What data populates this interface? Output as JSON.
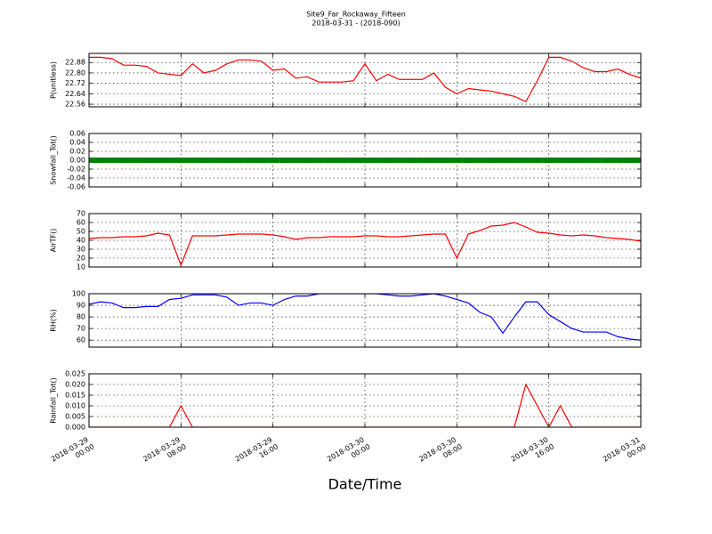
{
  "chart_data": [
    {
      "type": "line",
      "title": "Site9_Far_Rockaway_Fifteen",
      "subtitle": "2018-03-31 - (2018-090)",
      "y_label": "P(unitless)",
      "x": [
        "2018-03-29 00:00",
        "2018-03-29 01:00",
        "2018-03-29 02:00",
        "2018-03-29 03:00",
        "2018-03-29 04:00",
        "2018-03-29 05:00",
        "2018-03-29 06:00",
        "2018-03-29 07:00",
        "2018-03-29 08:00",
        "2018-03-29 09:00",
        "2018-03-29 10:00",
        "2018-03-29 11:00",
        "2018-03-29 12:00",
        "2018-03-29 13:00",
        "2018-03-29 14:00",
        "2018-03-29 15:00",
        "2018-03-29 16:00",
        "2018-03-29 17:00",
        "2018-03-29 18:00",
        "2018-03-29 19:00",
        "2018-03-29 20:00",
        "2018-03-29 21:00",
        "2018-03-29 22:00",
        "2018-03-29 23:00",
        "2018-03-30 00:00",
        "2018-03-30 01:00",
        "2018-03-30 02:00",
        "2018-03-30 03:00",
        "2018-03-30 04:00",
        "2018-03-30 05:00",
        "2018-03-30 06:00",
        "2018-03-30 07:00",
        "2018-03-30 08:00",
        "2018-03-30 09:00",
        "2018-03-30 10:00",
        "2018-03-30 11:00",
        "2018-03-30 12:00",
        "2018-03-30 13:00",
        "2018-03-30 14:00",
        "2018-03-30 15:00",
        "2018-03-30 16:00",
        "2018-03-30 17:00",
        "2018-03-30 18:00",
        "2018-03-30 19:00",
        "2018-03-30 20:00",
        "2018-03-30 21:00",
        "2018-03-30 22:00",
        "2018-03-30 23:00",
        "2018-03-31 00:00"
      ],
      "series": [
        {
          "color": "#ff0000",
          "values": [
            22.92,
            22.92,
            22.91,
            22.86,
            22.86,
            22.85,
            22.8,
            22.79,
            22.78,
            22.87,
            22.8,
            22.82,
            22.87,
            22.9,
            22.9,
            22.89,
            22.82,
            22.83,
            22.76,
            22.77,
            22.73,
            22.73,
            22.73,
            22.74,
            22.87,
            22.74,
            22.79,
            22.75,
            22.75,
            22.75,
            22.8,
            22.69,
            22.64,
            22.68,
            22.67,
            22.66,
            22.64,
            22.62,
            22.58,
            22.74,
            22.92,
            22.92,
            22.89,
            22.84,
            22.81,
            22.81,
            22.83,
            22.79,
            22.76
          ]
        }
      ],
      "xlim": [
        "2018-03-29 00:00",
        "2018-03-31 00:00"
      ],
      "xticks": [
        "2018-03-29 00:00",
        "2018-03-29 08:00",
        "2018-03-29 16:00",
        "2018-03-30 00:00",
        "2018-03-30 08:00",
        "2018-03-30 16:00",
        "2018-03-31 00:00"
      ],
      "ylim": [
        22.54,
        22.95
      ],
      "yticks": [
        22.56,
        22.64,
        22.72,
        {
          "value": 22.8,
          "label": "22.80"
        },
        22.88
      ],
      "grid": true
    },
    {
      "type": "line",
      "y_label": "Snowfall_Tot()",
      "markers": true,
      "x": [
        "2018-03-29 00:00",
        "2018-03-29 01:00",
        "2018-03-29 02:00",
        "2018-03-29 03:00",
        "2018-03-29 04:00",
        "2018-03-29 05:00",
        "2018-03-29 06:00",
        "2018-03-29 07:00",
        "2018-03-29 08:00",
        "2018-03-29 09:00",
        "2018-03-29 10:00",
        "2018-03-29 11:00",
        "2018-03-29 12:00",
        "2018-03-29 13:00",
        "2018-03-29 14:00",
        "2018-03-29 15:00",
        "2018-03-29 16:00",
        "2018-03-29 17:00",
        "2018-03-29 18:00",
        "2018-03-29 19:00",
        "2018-03-29 20:00",
        "2018-03-29 21:00",
        "2018-03-29 22:00",
        "2018-03-29 23:00",
        "2018-03-30 00:00",
        "2018-03-30 01:00",
        "2018-03-30 02:00",
        "2018-03-30 03:00",
        "2018-03-30 04:00",
        "2018-03-30 05:00",
        "2018-03-30 06:00",
        "2018-03-30 07:00",
        "2018-03-30 08:00",
        "2018-03-30 09:00",
        "2018-03-30 10:00",
        "2018-03-30 11:00",
        "2018-03-30 12:00",
        "2018-03-30 13:00",
        "2018-03-30 14:00",
        "2018-03-30 15:00",
        "2018-03-30 16:00",
        "2018-03-30 17:00",
        "2018-03-30 18:00",
        "2018-03-30 19:00",
        "2018-03-30 20:00",
        "2018-03-30 21:00",
        "2018-03-30 22:00",
        "2018-03-30 23:00",
        "2018-03-31 00:00"
      ],
      "series": [
        {
          "color": "#008000",
          "values": [
            0,
            0,
            0,
            0,
            0,
            0,
            0,
            0,
            0,
            0,
            0,
            0,
            0,
            0,
            0,
            0,
            0,
            0,
            0,
            0,
            0,
            0,
            0,
            0,
            0,
            0,
            0,
            0,
            0,
            0,
            0,
            0,
            0,
            0,
            0,
            0,
            0,
            0,
            0,
            0,
            0,
            0,
            0,
            0,
            0,
            0,
            0,
            0,
            0
          ]
        }
      ],
      "xlim": [
        "2018-03-29 00:00",
        "2018-03-31 00:00"
      ],
      "xticks": [
        "2018-03-29 00:00",
        "2018-03-29 08:00",
        "2018-03-29 16:00",
        "2018-03-30 00:00",
        "2018-03-30 08:00",
        "2018-03-30 16:00",
        "2018-03-31 00:00"
      ],
      "ylim": [
        -0.06,
        0.06
      ],
      "yticks": [
        -0.06,
        -0.04,
        -0.02,
        {
          "value": 0,
          "label": "0.00"
        },
        0.02,
        0.04,
        0.06
      ],
      "grid": true
    },
    {
      "type": "line",
      "y_label": "AirTF()",
      "x": [
        "2018-03-29 00:00",
        "2018-03-29 01:00",
        "2018-03-29 02:00",
        "2018-03-29 03:00",
        "2018-03-29 04:00",
        "2018-03-29 05:00",
        "2018-03-29 06:00",
        "2018-03-29 07:00",
        "2018-03-29 08:00",
        "2018-03-29 09:00",
        "2018-03-29 10:00",
        "2018-03-29 11:00",
        "2018-03-29 12:00",
        "2018-03-29 13:00",
        "2018-03-29 14:00",
        "2018-03-29 15:00",
        "2018-03-29 16:00",
        "2018-03-29 17:00",
        "2018-03-29 18:00",
        "2018-03-29 19:00",
        "2018-03-29 20:00",
        "2018-03-29 21:00",
        "2018-03-29 22:00",
        "2018-03-29 23:00",
        "2018-03-30 00:00",
        "2018-03-30 01:00",
        "2018-03-30 02:00",
        "2018-03-30 03:00",
        "2018-03-30 04:00",
        "2018-03-30 05:00",
        "2018-03-30 06:00",
        "2018-03-30 07:00",
        "2018-03-30 08:00",
        "2018-03-30 09:00",
        "2018-03-30 10:00",
        "2018-03-30 11:00",
        "2018-03-30 12:00",
        "2018-03-30 13:00",
        "2018-03-30 14:00",
        "2018-03-30 15:00",
        "2018-03-30 16:00",
        "2018-03-30 17:00",
        "2018-03-30 18:00",
        "2018-03-30 19:00",
        "2018-03-30 20:00",
        "2018-03-30 21:00",
        "2018-03-30 22:00",
        "2018-03-30 23:00",
        "2018-03-31 00:00"
      ],
      "series": [
        {
          "color": "#ff0000",
          "values": [
            42,
            43,
            43,
            44,
            44,
            45,
            48,
            46,
            12,
            45,
            45,
            45,
            46,
            47,
            47,
            47,
            46,
            44,
            41,
            43,
            43,
            44,
            44,
            44,
            45,
            45,
            44,
            44,
            45,
            46,
            47,
            47,
            20,
            47,
            51,
            56,
            57,
            60,
            55,
            49,
            48,
            46,
            45,
            46,
            45,
            43,
            42,
            41,
            39
          ]
        }
      ],
      "xlim": [
        "2018-03-29 00:00",
        "2018-03-31 00:00"
      ],
      "xticks": [
        "2018-03-29 00:00",
        "2018-03-29 08:00",
        "2018-03-29 16:00",
        "2018-03-30 00:00",
        "2018-03-30 08:00",
        "2018-03-30 16:00",
        "2018-03-31 00:00"
      ],
      "ylim": [
        10,
        70
      ],
      "yticks": [
        10,
        20,
        30,
        40,
        50,
        60,
        70
      ],
      "grid": true
    },
    {
      "type": "line",
      "y_label": "RH(%)",
      "x": [
        "2018-03-29 00:00",
        "2018-03-29 01:00",
        "2018-03-29 02:00",
        "2018-03-29 03:00",
        "2018-03-29 04:00",
        "2018-03-29 05:00",
        "2018-03-29 06:00",
        "2018-03-29 07:00",
        "2018-03-29 08:00",
        "2018-03-29 09:00",
        "2018-03-29 10:00",
        "2018-03-29 11:00",
        "2018-03-29 12:00",
        "2018-03-29 13:00",
        "2018-03-29 14:00",
        "2018-03-29 15:00",
        "2018-03-29 16:00",
        "2018-03-29 17:00",
        "2018-03-29 18:00",
        "2018-03-29 19:00",
        "2018-03-29 20:00",
        "2018-03-29 21:00",
        "2018-03-29 22:00",
        "2018-03-29 23:00",
        "2018-03-30 00:00",
        "2018-03-30 01:00",
        "2018-03-30 02:00",
        "2018-03-30 03:00",
        "2018-03-30 04:00",
        "2018-03-30 05:00",
        "2018-03-30 06:00",
        "2018-03-30 07:00",
        "2018-03-30 08:00",
        "2018-03-30 09:00",
        "2018-03-30 10:00",
        "2018-03-30 11:00",
        "2018-03-30 12:00",
        "2018-03-30 13:00",
        "2018-03-30 14:00",
        "2018-03-30 15:00",
        "2018-03-30 16:00",
        "2018-03-30 17:00",
        "2018-03-30 18:00",
        "2018-03-30 19:00",
        "2018-03-30 20:00",
        "2018-03-30 21:00",
        "2018-03-30 22:00",
        "2018-03-30 23:00",
        "2018-03-31 00:00"
      ],
      "series": [
        {
          "color": "#0000ff",
          "values": [
            91,
            93,
            92,
            88,
            88,
            89,
            89,
            95,
            96,
            99,
            99,
            99,
            97,
            90,
            92,
            92,
            90,
            95,
            98,
            98,
            100,
            100,
            100,
            100,
            100,
            100,
            99,
            98,
            98,
            99,
            100,
            98,
            95,
            92,
            84,
            80,
            66,
            80,
            93,
            93,
            82,
            76,
            70,
            67,
            67,
            67,
            63,
            61,
            60
          ]
        }
      ],
      "xlim": [
        "2018-03-29 00:00",
        "2018-03-31 00:00"
      ],
      "xticks": [
        "2018-03-29 00:00",
        "2018-03-29 08:00",
        "2018-03-29 16:00",
        "2018-03-30 00:00",
        "2018-03-30 08:00",
        "2018-03-30 16:00",
        "2018-03-31 00:00"
      ],
      "ylim": [
        54,
        100
      ],
      "yticks": [
        60,
        70,
        80,
        90,
        100
      ],
      "grid": true
    },
    {
      "type": "line",
      "y_label": "Rainfall_Tot()",
      "x_label": "Date/Time",
      "x": [
        "2018-03-29 00:00",
        "2018-03-29 01:00",
        "2018-03-29 02:00",
        "2018-03-29 03:00",
        "2018-03-29 04:00",
        "2018-03-29 05:00",
        "2018-03-29 06:00",
        "2018-03-29 07:00",
        "2018-03-29 08:00",
        "2018-03-29 09:00",
        "2018-03-29 10:00",
        "2018-03-29 11:00",
        "2018-03-29 12:00",
        "2018-03-29 13:00",
        "2018-03-29 14:00",
        "2018-03-29 15:00",
        "2018-03-29 16:00",
        "2018-03-29 17:00",
        "2018-03-29 18:00",
        "2018-03-29 19:00",
        "2018-03-29 20:00",
        "2018-03-29 21:00",
        "2018-03-29 22:00",
        "2018-03-29 23:00",
        "2018-03-30 00:00",
        "2018-03-30 01:00",
        "2018-03-30 02:00",
        "2018-03-30 03:00",
        "2018-03-30 04:00",
        "2018-03-30 05:00",
        "2018-03-30 06:00",
        "2018-03-30 07:00",
        "2018-03-30 08:00",
        "2018-03-30 09:00",
        "2018-03-30 10:00",
        "2018-03-30 11:00",
        "2018-03-30 12:00",
        "2018-03-30 13:00",
        "2018-03-30 14:00",
        "2018-03-30 15:00",
        "2018-03-30 16:00",
        "2018-03-30 17:00",
        "2018-03-30 18:00",
        "2018-03-30 19:00",
        "2018-03-30 20:00",
        "2018-03-30 21:00",
        "2018-03-30 22:00",
        "2018-03-30 23:00",
        "2018-03-31 00:00"
      ],
      "series": [
        {
          "color": "#ff0000",
          "values": [
            0,
            0,
            0,
            0,
            0,
            0,
            0,
            0,
            0.01,
            0,
            0,
            0,
            0,
            0,
            0,
            0,
            0,
            0,
            0,
            0,
            0,
            0,
            0,
            0,
            0,
            0,
            0,
            0,
            0,
            0,
            0,
            0,
            0,
            0,
            0,
            0,
            0,
            0,
            0.02,
            0.01,
            0,
            0.01,
            0,
            0,
            0,
            0,
            0,
            0,
            0
          ]
        }
      ],
      "xlim": [
        "2018-03-29 00:00",
        "2018-03-31 00:00"
      ],
      "xticks": [
        "2018-03-29 00:00",
        "2018-03-29 08:00",
        "2018-03-29 16:00",
        "2018-03-30 00:00",
        "2018-03-30 08:00",
        "2018-03-30 16:00",
        "2018-03-31 00:00"
      ],
      "ylim": [
        0,
        0.025
      ],
      "yticks": [
        {
          "value": 0,
          "label": "0.000"
        },
        0.005,
        {
          "value": 0.01,
          "label": "0.010"
        },
        0.015,
        {
          "value": 0.02,
          "label": "0.020"
        },
        0.025
      ],
      "grid": true
    }
  ]
}
